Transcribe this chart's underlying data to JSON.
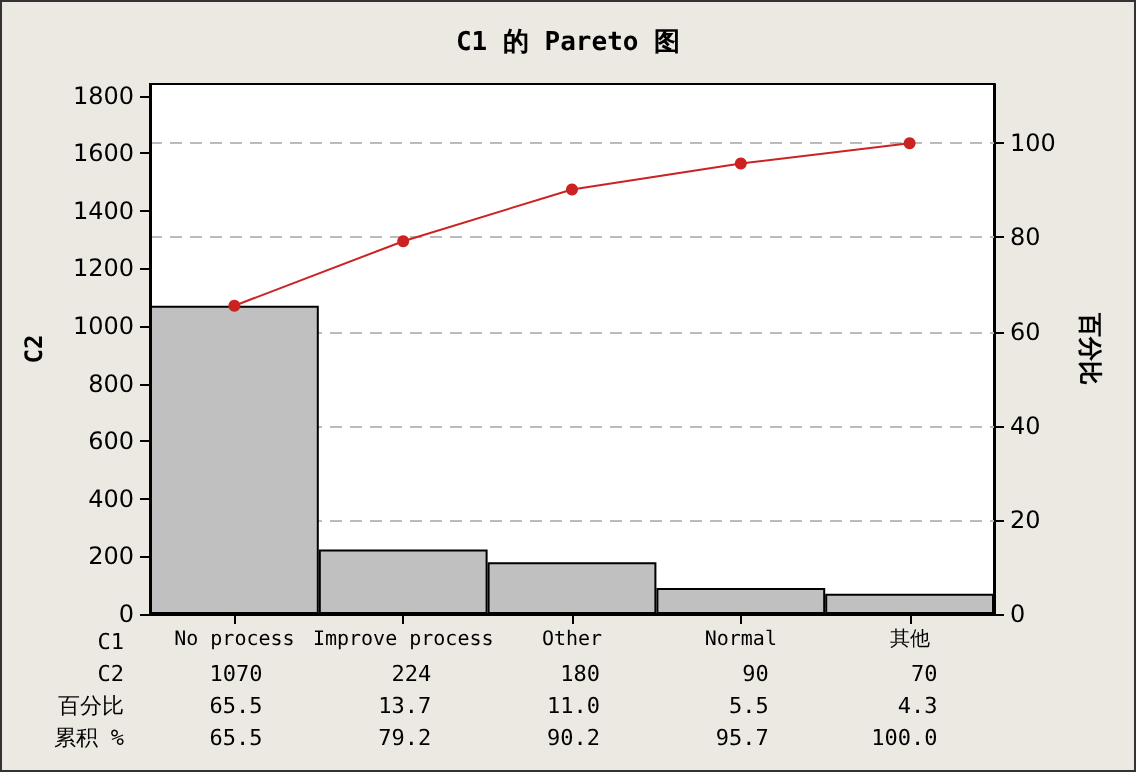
{
  "chart_data": {
    "type": "bar",
    "title": "C1 的 Pareto 图",
    "xlabel": "C1",
    "ylabel": "C2",
    "y2label": "百分比",
    "categories": [
      "No process",
      "Improve process",
      "Other",
      "Normal",
      "其他"
    ],
    "series": [
      {
        "color": "#c0c0c0",
        "values": [
          1070,
          224,
          180,
          90,
          70
        ],
        "value_labels": [
          "1070",
          "224",
          "180",
          "90",
          "70"
        ]
      },
      {
        "type": "line",
        "axis": "y2",
        "color": "#cc2222",
        "marker": "circle",
        "values": [
          65.5,
          79.2,
          90.2,
          95.7,
          100.0
        ],
        "value_labels": [
          "65.5",
          "79.2",
          "90.2",
          "95.7",
          "100.0"
        ]
      }
    ],
    "annotations": [
      "百分比",
      "65.5",
      "13.7",
      "11.0",
      "5.5",
      "4.3",
      "累积 %"
    ],
    "ylim": [
      0,
      1840
    ],
    "yticks": [
      0,
      200,
      400,
      600,
      800,
      1000,
      1200,
      1400,
      1600,
      1800
    ],
    "y2lim": [
      0,
      112.6
    ],
    "y2ticks": [
      0,
      20,
      40,
      60,
      80,
      100
    ],
    "grid": "y2"
  }
}
